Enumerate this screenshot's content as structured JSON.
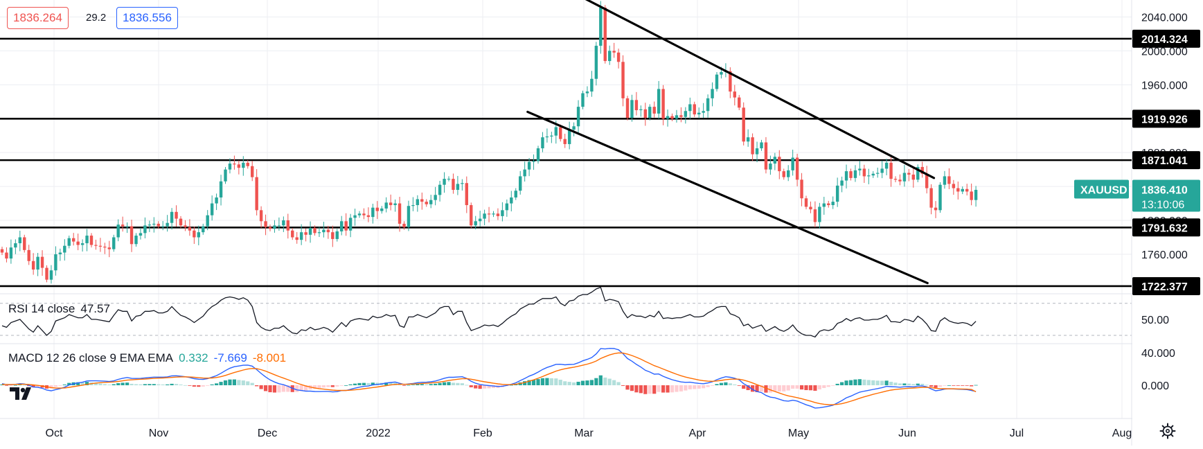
{
  "header": {
    "bid": "1836.264",
    "spread": "29.2",
    "ask": "1836.556"
  },
  "symbol": {
    "name": "XAUUSD",
    "price": "1836.410",
    "countdown": "13:10:06",
    "color": "#26a69a"
  },
  "colors": {
    "up": "#26a69a",
    "down": "#ef5350",
    "macd_line": "#2962ff",
    "signal_line": "#ff6d00",
    "hist_up_strong": "#26a69a",
    "hist_up_weak": "#b2dfdb",
    "hist_down_strong": "#ef5350",
    "hist_down_weak": "#ffcdd2"
  },
  "chart_data": [
    {
      "type": "candlestick",
      "symbol": "XAUUSD",
      "x_ticks": [
        "Oct",
        "Nov",
        "Dec",
        "2022",
        "Feb",
        "Mar",
        "Apr",
        "May",
        "Jun",
        "Jul",
        "Aug"
      ],
      "y_ticks": [
        "2040.000",
        "2000.000",
        "1960.000",
        "1920.000",
        "1880.000",
        "1840.000",
        "1800.000",
        "1760.000"
      ],
      "ylim": [
        1715,
        2060
      ],
      "horizontal_levels": [
        "2014.324",
        "1919.926",
        "1871.041",
        "1791.632",
        "1722.377"
      ],
      "trend_channel": [
        {
          "from": {
            "date": "2022-03-08",
            "price": 2075
          },
          "to": {
            "date": "2022-07-02",
            "price": 1850
          }
        },
        {
          "from": {
            "date": "2022-02-25",
            "price": 1928
          },
          "to": {
            "date": "2022-06-30",
            "price": 1726
          }
        }
      ],
      "close": [
        1762,
        1755,
        1768,
        1773,
        1780,
        1765,
        1752,
        1742,
        1757,
        1744,
        1730,
        1741,
        1760,
        1762,
        1770,
        1779,
        1775,
        1771,
        1773,
        1782,
        1771,
        1770,
        1769,
        1768,
        1766,
        1780,
        1795,
        1793,
        1793,
        1772,
        1782,
        1785,
        1794,
        1795,
        1796,
        1793,
        1793,
        1797,
        1810,
        1802,
        1794,
        1792,
        1788,
        1780,
        1786,
        1793,
        1806,
        1820,
        1827,
        1846,
        1860,
        1867,
        1866,
        1862,
        1868,
        1864,
        1851,
        1812,
        1799,
        1792,
        1790,
        1794,
        1794,
        1800,
        1788,
        1780,
        1777,
        1786,
        1783,
        1791,
        1785,
        1786,
        1789,
        1786,
        1778,
        1787,
        1799,
        1788,
        1803,
        1806,
        1808,
        1806,
        1804,
        1815,
        1811,
        1814,
        1821,
        1818,
        1820,
        1796,
        1792,
        1817,
        1818,
        1825,
        1822,
        1819,
        1824,
        1830,
        1842,
        1849,
        1849,
        1836,
        1843,
        1844,
        1818,
        1794,
        1799,
        1802,
        1808,
        1807,
        1808,
        1805,
        1812,
        1820,
        1827,
        1835,
        1852,
        1860,
        1869,
        1870,
        1885,
        1898,
        1899,
        1900,
        1910,
        1896,
        1890,
        1907,
        1911,
        1934,
        1950,
        1952,
        1967,
        2006,
        2051,
        1988,
        2000,
        1998,
        1987,
        1944,
        1921,
        1942,
        1930,
        1931,
        1921,
        1934,
        1926,
        1955,
        1920,
        1923,
        1920,
        1924,
        1922,
        1929,
        1937,
        1925,
        1927,
        1929,
        1944,
        1955,
        1972,
        1975,
        1976,
        1952,
        1945,
        1933,
        1893,
        1898,
        1878,
        1885,
        1892,
        1860,
        1867,
        1875,
        1858,
        1851,
        1859,
        1874,
        1848,
        1826,
        1816,
        1813,
        1798,
        1816,
        1820,
        1818,
        1822,
        1841,
        1847,
        1858,
        1850,
        1859,
        1861,
        1852,
        1853,
        1855,
        1856,
        1861,
        1868,
        1849,
        1848,
        1846,
        1856,
        1854,
        1848,
        1863,
        1855,
        1838,
        1815,
        1812,
        1842,
        1852,
        1843,
        1838,
        1834,
        1837,
        1834,
        1824,
        1836
      ],
      "panes": {
        "rsi": {
          "label": "RSI 14 close",
          "value": "47.57",
          "y_ticks": [
            "50.00"
          ],
          "levels": [
            70,
            30
          ],
          "values": [
            42,
            40,
            46,
            48,
            50,
            44,
            38,
            34,
            42,
            36,
            30,
            35,
            48,
            50,
            52,
            56,
            54,
            52,
            52,
            56,
            50,
            50,
            49,
            48,
            47,
            55,
            62,
            60,
            60,
            48,
            54,
            55,
            60,
            60,
            61,
            58,
            58,
            60,
            66,
            60,
            55,
            53,
            50,
            46,
            50,
            54,
            61,
            66,
            69,
            74,
            77,
            78,
            77,
            75,
            77,
            74,
            66,
            46,
            40,
            37,
            36,
            39,
            39,
            42,
            37,
            33,
            32,
            37,
            36,
            40,
            37,
            38,
            40,
            38,
            34,
            40,
            46,
            41,
            48,
            50,
            51,
            50,
            49,
            54,
            52,
            53,
            56,
            54,
            55,
            42,
            40,
            53,
            53,
            56,
            54,
            52,
            55,
            58,
            64,
            66,
            66,
            56,
            60,
            60,
            46,
            36,
            38,
            40,
            43,
            42,
            43,
            41,
            45,
            50,
            54,
            57,
            63,
            66,
            69,
            69,
            73,
            76,
            76,
            76,
            78,
            70,
            67,
            73,
            74,
            79,
            81,
            81,
            84,
            88,
            90,
            73,
            75,
            74,
            72,
            60,
            52,
            56,
            54,
            54,
            52,
            55,
            53,
            60,
            51,
            52,
            51,
            52,
            52,
            54,
            56,
            53,
            53,
            54,
            58,
            61,
            65,
            66,
            66,
            57,
            55,
            52,
            42,
            44,
            39,
            41,
            43,
            35,
            38,
            41,
            37,
            35,
            38,
            43,
            36,
            32,
            30,
            30,
            28,
            35,
            37,
            36,
            38,
            45,
            47,
            51,
            48,
            51,
            52,
            49,
            49,
            50,
            50,
            52,
            55,
            47,
            47,
            46,
            50,
            49,
            47,
            54,
            50,
            44,
            36,
            35,
            48,
            52,
            48,
            46,
            45,
            46,
            45,
            42,
            47.57
          ]
        },
        "macd": {
          "label": "MACD 12 26 close 9 EMA EMA",
          "histogram_value": "0.332",
          "macd_value": "-7.669",
          "signal_value": "-8.001",
          "y_ticks": [
            "40.000",
            "0.000"
          ],
          "macd": [
            2.0,
            0.8,
            0.8,
            1.1,
            2.0,
            1.5,
            -0.1,
            -2.2,
            -2.5,
            -3.8,
            -6.0,
            -6.8,
            -5.4,
            -4.1,
            -2.4,
            0.3,
            1.9,
            2.9,
            3.8,
            5.3,
            5.5,
            5.5,
            5.3,
            5.0,
            4.6,
            5.4,
            7.3,
            8.6,
            9.6,
            8.5,
            8.4,
            8.5,
            9.1,
            9.6,
            10.0,
            10.0,
            10.0,
            10.3,
            11.5,
            11.7,
            11.2,
            10.5,
            9.6,
            8.1,
            7.4,
            7.3,
            8.2,
            10.0,
            11.9,
            14.8,
            18.1,
            21.0,
            22.9,
            23.8,
            24.7,
            24.8,
            23.6,
            19.2,
            14.5,
            10.2,
            6.6,
            4.0,
            1.9,
            0.7,
            -1.3,
            -3.7,
            -5.7,
            -6.5,
            -7.3,
            -7.3,
            -7.7,
            -7.8,
            -7.6,
            -7.6,
            -8.2,
            -7.9,
            -6.6,
            -6.4,
            -5.0,
            -3.6,
            -2.3,
            -1.4,
            -0.9,
            0.4,
            1.0,
            1.7,
            2.8,
            3.4,
            4.0,
            2.4,
            0.9,
            1.6,
            2.2,
            3.2,
            3.7,
            3.8,
            4.3,
            5.2,
            6.8,
            8.6,
            9.9,
            9.8,
            10.2,
            10.5,
            8.5,
            4.9,
            2.5,
            0.9,
            0.2,
            -0.4,
            -0.9,
            -1.5,
            -1.2,
            -0.2,
            1.2,
            3.0,
            5.7,
            8.4,
            11.3,
            13.4,
            16.2,
            19.5,
            22.0,
            23.8,
            25.8,
            25.9,
            25.2,
            25.6,
            25.8,
            27.7,
            30.2,
            32.0,
            34.2,
            38.7,
            45.2,
            44.8,
            45.5,
            45.3,
            43.8,
            38.9,
            33.0,
            29.7,
            25.7,
            22.4,
            18.5,
            16.3,
            13.7,
            13.9,
            11.0,
            8.8,
            6.8,
            5.4,
            4.1,
            3.6,
            3.8,
            2.9,
            2.3,
            1.9,
            2.8,
            4.3,
            6.8,
            8.9,
            10.5,
            9.8,
            8.6,
            6.7,
            2.0,
            -1.2,
            -5.2,
            -7.8,
            -9.1,
            -12.6,
            -14.7,
            -15.5,
            -17.3,
            -19.1,
            -19.6,
            -18.5,
            -19.5,
            -21.8,
            -24.1,
            -25.8,
            -28.1,
            -27.7,
            -26.8,
            -25.9,
            -24.6,
            -21.8,
            -18.9,
            -15.5,
            -13.4,
            -10.8,
            -8.5,
            -7.3,
            -6.2,
            -5.1,
            -4.1,
            -2.9,
            -1.4,
            -1.7,
            -2.0,
            -2.4,
            -1.9,
            -1.7,
            -2.0,
            -1.0,
            -0.8,
            -2.0,
            -4.6,
            -6.8,
            -6.1,
            -4.8,
            -4.4,
            -4.5,
            -4.9,
            -5.0,
            -5.4,
            -6.5,
            -7.669
          ],
          "signal": [
            1.0,
            1.0,
            0.9,
            1.0,
            1.2,
            1.2,
            1.0,
            0.4,
            -0.2,
            -0.9,
            -1.9,
            -2.9,
            -3.4,
            -3.5,
            -3.3,
            -2.6,
            -1.7,
            -0.8,
            0.1,
            1.1,
            2.0,
            2.7,
            3.2,
            3.6,
            3.8,
            4.1,
            4.7,
            5.5,
            6.3,
            6.7,
            7.1,
            7.4,
            7.7,
            8.1,
            8.5,
            8.8,
            9.0,
            9.3,
            9.7,
            10.1,
            10.3,
            10.4,
            10.2,
            9.8,
            9.3,
            8.9,
            8.8,
            9.0,
            9.6,
            10.6,
            12.1,
            13.9,
            15.7,
            17.3,
            18.8,
            20.0,
            20.7,
            20.4,
            19.2,
            17.4,
            15.2,
            13.0,
            10.8,
            8.8,
            6.8,
            4.7,
            2.6,
            0.8,
            -0.9,
            -2.2,
            -3.3,
            -4.2,
            -4.8,
            -5.4,
            -6.0,
            -6.4,
            -6.4,
            -6.4,
            -6.1,
            -5.6,
            -5.0,
            -4.3,
            -3.6,
            -2.8,
            -2.1,
            -1.3,
            -0.5,
            0.3,
            1.0,
            1.3,
            1.2,
            1.3,
            1.5,
            1.8,
            2.2,
            2.5,
            2.8,
            3.3,
            4.0,
            4.9,
            5.9,
            6.7,
            7.4,
            8.0,
            8.1,
            7.4,
            6.4,
            5.3,
            4.3,
            3.4,
            2.5,
            1.7,
            1.1,
            0.8,
            0.9,
            1.3,
            2.2,
            3.4,
            5.0,
            6.7,
            8.6,
            10.8,
            13.1,
            15.2,
            17.4,
            19.1,
            20.3,
            21.4,
            22.3,
            23.4,
            24.7,
            26.1,
            27.7,
            29.9,
            33.0,
            35.3,
            37.4,
            39.0,
            39.9,
            39.7,
            38.4,
            36.7,
            34.5,
            32.1,
            29.4,
            26.8,
            24.2,
            22.2,
            20.0,
            17.8,
            15.6,
            13.6,
            11.7,
            10.1,
            8.8,
            7.6,
            6.5,
            5.6,
            5.0,
            4.9,
            5.3,
            6.0,
            6.9,
            7.4,
            7.6,
            7.4,
            6.3,
            4.8,
            2.8,
            0.7,
            -1.3,
            -3.5,
            -5.7,
            -7.7,
            -9.6,
            -11.5,
            -13.1,
            -14.2,
            -15.3,
            -16.6,
            -18.1,
            -19.6,
            -21.3,
            -22.6,
            -23.4,
            -23.9,
            -24.0,
            -23.6,
            -22.7,
            -21.3,
            -19.7,
            -17.9,
            -16.0,
            -14.3,
            -12.7,
            -11.2,
            -9.8,
            -8.5,
            -7.1,
            -6.0,
            -5.2,
            -4.6,
            -4.1,
            -3.7,
            -3.4,
            -3.0,
            -2.6,
            -2.5,
            -2.9,
            -3.7,
            -4.2,
            -4.3,
            -4.4,
            -4.4,
            -4.5,
            -4.6,
            -4.8,
            -5.2,
            -8.001
          ]
        }
      }
    }
  ]
}
